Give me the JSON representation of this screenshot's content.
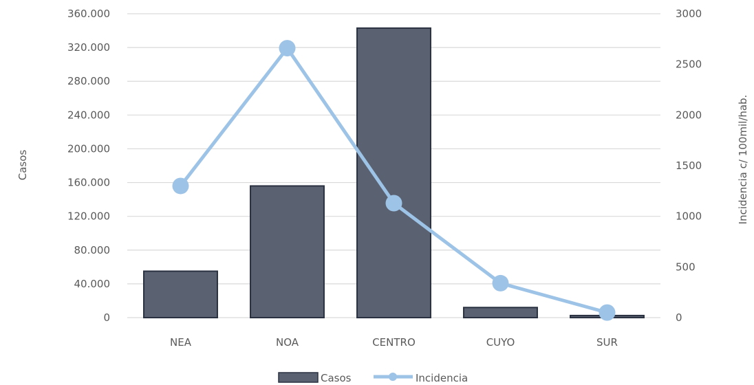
{
  "chart_data": {
    "type": "bar",
    "categories": [
      "NEA",
      "NOA",
      "CENTRO",
      "CUYO",
      "SUR"
    ],
    "series": [
      {
        "name": "Casos",
        "type": "bar",
        "axis": "left",
        "values": [
          55000,
          156000,
          343000,
          12000,
          2500
        ]
      },
      {
        "name": "Incidencia",
        "type": "line",
        "axis": "right",
        "values": [
          1300,
          2660,
          1130,
          340,
          50
        ]
      }
    ],
    "ylabel": "Casos",
    "y2label": "Incidencia c/ 100mil/hab.",
    "ylim": [
      0,
      360000
    ],
    "y2lim": [
      0,
      3000
    ],
    "yticks": [
      "0",
      "40.000",
      "80.000",
      "120.000",
      "160.000",
      "200.000",
      "240.000",
      "280.000",
      "320.000",
      "360.000"
    ],
    "y2ticks": [
      "0",
      "500",
      "1000",
      "1500",
      "2000",
      "2500",
      "3000"
    ],
    "grid": true,
    "legend_position": "bottom",
    "colors": {
      "bar": "#5a6272",
      "bar_edge": "#2a3140",
      "line": "#9dc3e6",
      "grid": "#d9d9d9",
      "text": "#595959"
    }
  }
}
